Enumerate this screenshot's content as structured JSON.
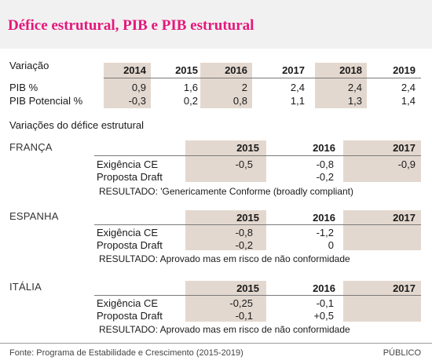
{
  "title": "Défice estrutural, PIB e PIB estrutural",
  "variacao": {
    "heading": "Variação",
    "years": [
      "2014",
      "2015",
      "2016",
      "2017",
      "2018",
      "2019"
    ],
    "rows": [
      {
        "label": "PIB %",
        "values": [
          "0,9",
          "1,6",
          "2",
          "2,4",
          "2,4",
          "2,4"
        ]
      },
      {
        "label": "PIB Potencial %",
        "values": [
          "-0,3",
          "0,2",
          "0,8",
          "1,1",
          "1,3",
          "1,4"
        ]
      }
    ]
  },
  "deficit_heading": "Variações do défice estrutural",
  "countries": [
    {
      "name": "FRANÇA",
      "years": [
        "2015",
        "2016",
        "2017"
      ],
      "rows": [
        {
          "label": "Exigência CE",
          "values": [
            "-0,5",
            "-0,8",
            "-0,9"
          ]
        },
        {
          "label": "Proposta Draft",
          "values": [
            "",
            "-0,2",
            ""
          ]
        }
      ],
      "result": "RESULTADO: 'Genericamente Conforme (broadly compliant)"
    },
    {
      "name": "ESPANHA",
      "years": [
        "2015",
        "2016",
        "2017"
      ],
      "rows": [
        {
          "label": "Exigência CE",
          "values": [
            "-0,8",
            "-1,2",
            ""
          ]
        },
        {
          "label": "Proposta Draft",
          "values": [
            "-0,2",
            "0",
            ""
          ]
        }
      ],
      "result": "RESULTADO: Aprovado mas em risco de não conformidade"
    },
    {
      "name": "ITÁLIA",
      "years": [
        "2015",
        "2016",
        "2017"
      ],
      "rows": [
        {
          "label": "Exigência CE",
          "values": [
            "-0,25",
            "-0,1",
            ""
          ]
        },
        {
          "label": "Proposta Draft",
          "values": [
            "-0,1",
            "+0,5",
            ""
          ]
        }
      ],
      "result": "RESULTADO: Aprovado mas em risco de não conformidade"
    }
  ],
  "footer": {
    "source": "Fonte: Programa de Estabilidade e Crescimento (2015-2019)",
    "brand": "PÚBLICO"
  },
  "colors": {
    "title": "#e5177b",
    "shade": "#e3d8cf",
    "band": "#f1f1f1"
  }
}
